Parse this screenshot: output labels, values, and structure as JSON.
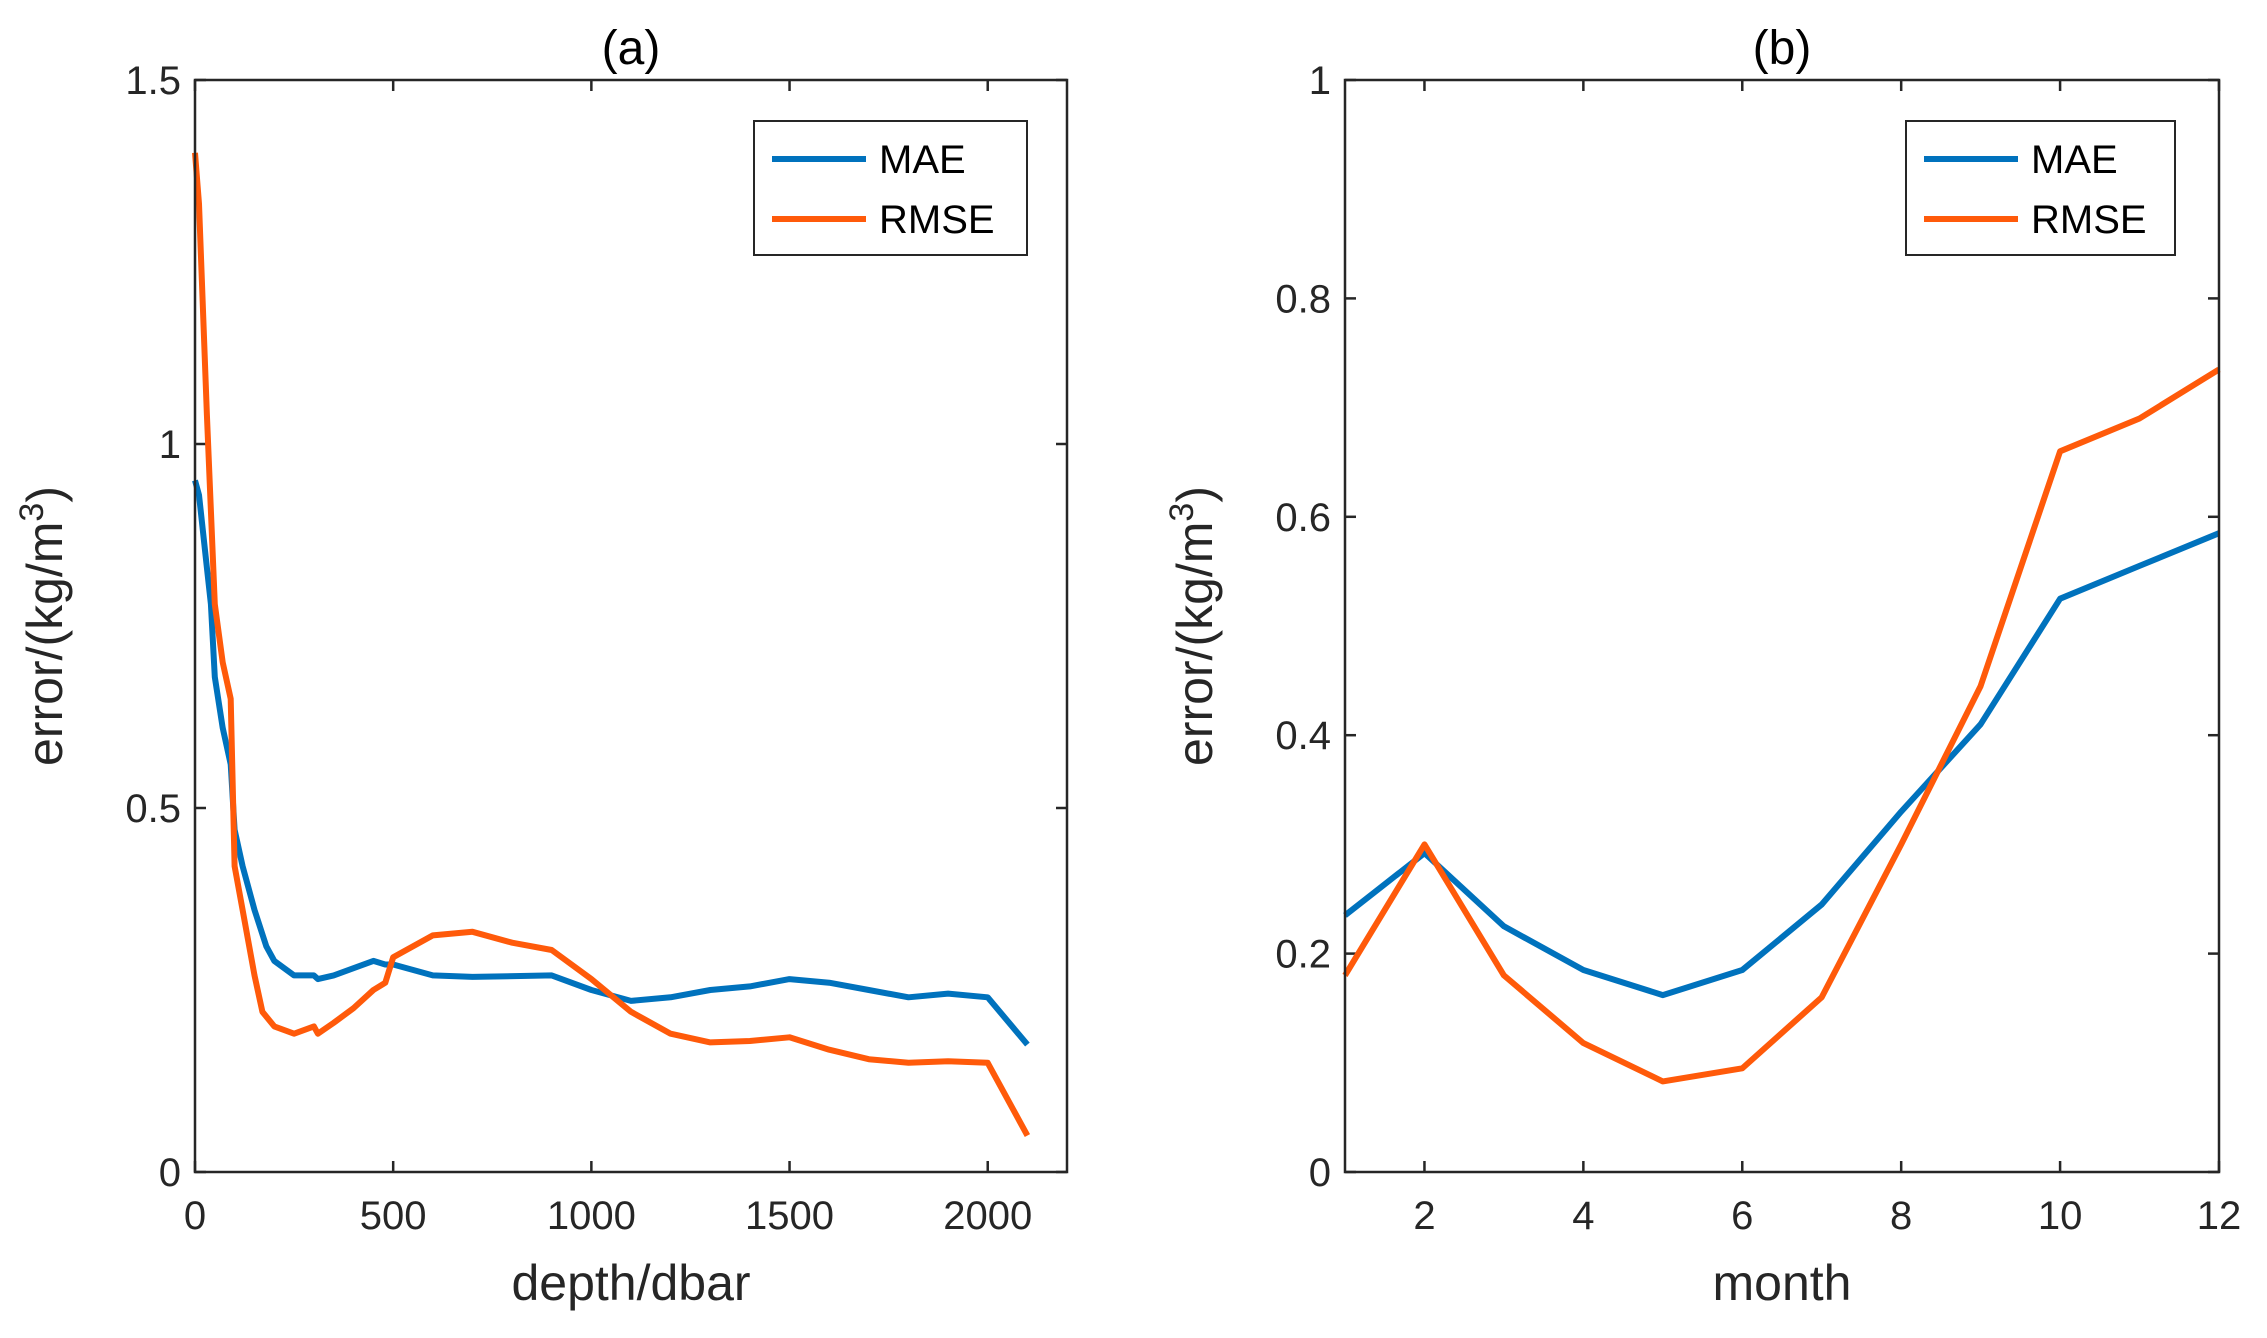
{
  "chart_data": [
    {
      "type": "line",
      "title": "(a)",
      "xlabel": "depth/dbar",
      "ylabel_main": "error/(kg/m",
      "ylabel_sup": "3",
      "ylabel_close": ")",
      "xlim": [
        0,
        2200
      ],
      "ylim": [
        0,
        1.5
      ],
      "xticks": [
        0,
        500,
        1000,
        1500,
        2000
      ],
      "xtick_labels": [
        "0",
        "500",
        "1000",
        "1500",
        "2000"
      ],
      "yticks": [
        0,
        0.5,
        1,
        1.5
      ],
      "ytick_labels": [
        "0",
        "0.5",
        "1",
        "1.5"
      ],
      "grid": false,
      "legend_position": "top-right",
      "series": [
        {
          "name": "MAE",
          "color": "#0072BD",
          "x": [
            0,
            10,
            30,
            40,
            50,
            70,
            90,
            100,
            120,
            150,
            180,
            200,
            250,
            300,
            310,
            350,
            400,
            450,
            480,
            500,
            600,
            700,
            900,
            1000,
            1100,
            1200,
            1300,
            1400,
            1500,
            1600,
            1700,
            1800,
            1900,
            2000,
            2100
          ],
          "y": [
            0.95,
            0.93,
            0.83,
            0.78,
            0.68,
            0.61,
            0.56,
            0.47,
            0.42,
            0.36,
            0.31,
            0.29,
            0.27,
            0.27,
            0.265,
            0.27,
            0.28,
            0.29,
            0.285,
            0.285,
            0.27,
            0.268,
            0.27,
            0.25,
            0.235,
            0.24,
            0.25,
            0.255,
            0.265,
            0.26,
            0.25,
            0.24,
            0.245,
            0.24,
            0.175
          ]
        },
        {
          "name": "RMSE",
          "color": "#FF5A0A",
          "x": [
            0,
            10,
            30,
            50,
            70,
            90,
            100,
            120,
            150,
            170,
            200,
            250,
            300,
            310,
            350,
            400,
            450,
            480,
            500,
            600,
            700,
            800,
            900,
            1000,
            1100,
            1200,
            1300,
            1400,
            1500,
            1600,
            1700,
            1800,
            1900,
            2000,
            2100
          ],
          "y": [
            1.4,
            1.33,
            1.04,
            0.78,
            0.7,
            0.65,
            0.42,
            0.36,
            0.27,
            0.22,
            0.2,
            0.19,
            0.2,
            0.19,
            0.205,
            0.225,
            0.25,
            0.26,
            0.295,
            0.325,
            0.33,
            0.315,
            0.305,
            0.265,
            0.22,
            0.19,
            0.178,
            0.18,
            0.185,
            0.168,
            0.155,
            0.15,
            0.152,
            0.15,
            0.05
          ]
        }
      ]
    },
    {
      "type": "line",
      "title": "(b)",
      "xlabel": "month",
      "ylabel_main": "error/(kg/m",
      "ylabel_sup": "3",
      "ylabel_close": ")",
      "xlim": [
        1,
        12
      ],
      "ylim": [
        0,
        1
      ],
      "xticks": [
        2,
        4,
        6,
        8,
        10,
        12
      ],
      "xtick_labels": [
        "2",
        "4",
        "6",
        "8",
        "10",
        "12"
      ],
      "yticks": [
        0,
        0.2,
        0.4,
        0.6,
        0.8,
        1
      ],
      "ytick_labels": [
        "0",
        "0.2",
        "0.4",
        "0.6",
        "0.8",
        "1"
      ],
      "grid": false,
      "legend_position": "top-right",
      "series": [
        {
          "name": "MAE",
          "color": "#0072BD",
          "x": [
            1,
            2,
            3,
            4,
            5,
            6,
            7,
            8,
            9,
            10,
            11,
            12
          ],
          "y": [
            0.235,
            0.292,
            0.225,
            0.185,
            0.162,
            0.185,
            0.245,
            0.33,
            0.41,
            0.525,
            0.555,
            0.585
          ]
        },
        {
          "name": "RMSE",
          "color": "#FF5A0A",
          "x": [
            1,
            2,
            3,
            4,
            5,
            6,
            7,
            8,
            9,
            10,
            11,
            12
          ],
          "y": [
            0.18,
            0.3,
            0.18,
            0.118,
            0.083,
            0.095,
            0.16,
            0.3,
            0.445,
            0.66,
            0.69,
            0.735
          ]
        }
      ]
    }
  ]
}
